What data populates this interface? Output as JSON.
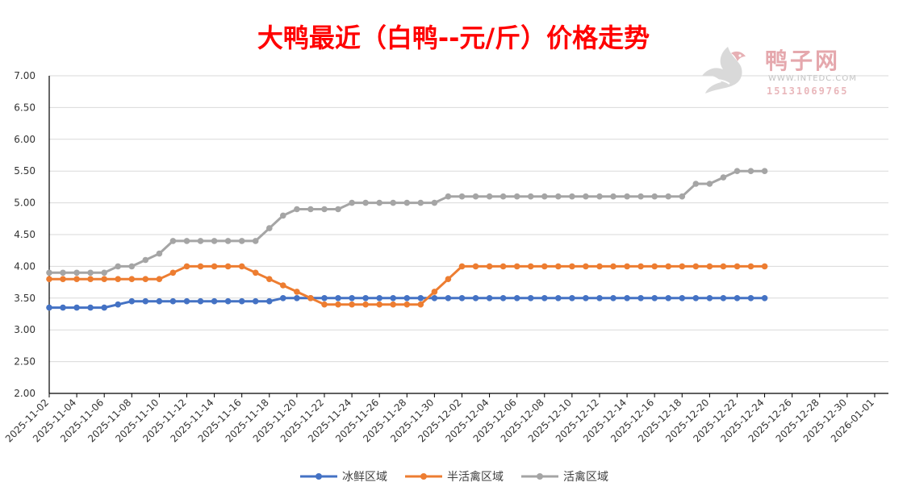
{
  "chart_data": {
    "type": "line",
    "title": "大鸭最近（白鸭--元/斤）价格走势",
    "xlabel": "",
    "ylabel": "",
    "ylim": [
      2.0,
      7.0
    ],
    "y_ticks": [
      "2.00",
      "2.50",
      "3.00",
      "3.50",
      "4.00",
      "4.50",
      "5.00",
      "5.50",
      "6.00",
      "6.50",
      "7.00"
    ],
    "x_range": [
      "2025-11-02",
      "2026-01-02"
    ],
    "x_tick_labels": [
      "2025-11-02",
      "2025-11-04",
      "2025-11-06",
      "2025-11-08",
      "2025-11-10",
      "2025-11-12",
      "2025-11-14",
      "2025-11-16",
      "2025-11-18",
      "2025-11-20",
      "2025-11-22",
      "2025-11-24",
      "2025-11-26",
      "2025-11-28",
      "2025-11-30",
      "2025-12-02",
      "2025-12-04",
      "2025-12-06",
      "2025-12-08",
      "2025-12-10",
      "2025-12-12",
      "2025-12-14",
      "2025-12-16",
      "2025-12-18",
      "2025-12-20",
      "2025-12-22",
      "2025-12-24",
      "2025-12-26",
      "2025-12-28",
      "2025-12-30",
      "2026-01-01"
    ],
    "grid": true,
    "legend_position": "bottom",
    "x": [
      "2025-11-02",
      "2025-11-03",
      "2025-11-04",
      "2025-11-05",
      "2025-11-06",
      "2025-11-07",
      "2025-11-08",
      "2025-11-09",
      "2025-11-10",
      "2025-11-11",
      "2025-11-12",
      "2025-11-13",
      "2025-11-14",
      "2025-11-15",
      "2025-11-16",
      "2025-11-17",
      "2025-11-18",
      "2025-11-19",
      "2025-11-20",
      "2025-11-21",
      "2025-11-22",
      "2025-11-23",
      "2025-11-24",
      "2025-11-25",
      "2025-11-26",
      "2025-11-27",
      "2025-11-28",
      "2025-11-29",
      "2025-11-30",
      "2025-12-01",
      "2025-12-02",
      "2025-12-03",
      "2025-12-04",
      "2025-12-05",
      "2025-12-06",
      "2025-12-07",
      "2025-12-08",
      "2025-12-09",
      "2025-12-10",
      "2025-12-11",
      "2025-12-12",
      "2025-12-13",
      "2025-12-14",
      "2025-12-15",
      "2025-12-16",
      "2025-12-17",
      "2025-12-18",
      "2025-12-19",
      "2025-12-20",
      "2025-12-21",
      "2025-12-22",
      "2025-12-23",
      "2025-12-24"
    ],
    "series": [
      {
        "name": "冰鲜区域",
        "color": "#4472c4",
        "values": [
          3.35,
          3.35,
          3.35,
          3.35,
          3.35,
          3.4,
          3.45,
          3.45,
          3.45,
          3.45,
          3.45,
          3.45,
          3.45,
          3.45,
          3.45,
          3.45,
          3.45,
          3.5,
          3.5,
          3.5,
          3.5,
          3.5,
          3.5,
          3.5,
          3.5,
          3.5,
          3.5,
          3.5,
          3.5,
          3.5,
          3.5,
          3.5,
          3.5,
          3.5,
          3.5,
          3.5,
          3.5,
          3.5,
          3.5,
          3.5,
          3.5,
          3.5,
          3.5,
          3.5,
          3.5,
          3.5,
          3.5,
          3.5,
          3.5,
          3.5,
          3.5,
          3.5,
          3.5
        ]
      },
      {
        "name": "半活禽区域",
        "color": "#ed7d31",
        "values": [
          3.8,
          3.8,
          3.8,
          3.8,
          3.8,
          3.8,
          3.8,
          3.8,
          3.8,
          3.9,
          4.0,
          4.0,
          4.0,
          4.0,
          4.0,
          3.9,
          3.8,
          3.7,
          3.6,
          3.5,
          3.4,
          3.4,
          3.4,
          3.4,
          3.4,
          3.4,
          3.4,
          3.4,
          3.6,
          3.8,
          4.0,
          4.0,
          4.0,
          4.0,
          4.0,
          4.0,
          4.0,
          4.0,
          4.0,
          4.0,
          4.0,
          4.0,
          4.0,
          4.0,
          4.0,
          4.0,
          4.0,
          4.0,
          4.0,
          4.0,
          4.0,
          4.0,
          4.0
        ]
      },
      {
        "name": "活禽区域",
        "color": "#a5a5a5",
        "values": [
          3.9,
          3.9,
          3.9,
          3.9,
          3.9,
          4.0,
          4.0,
          4.1,
          4.2,
          4.4,
          4.4,
          4.4,
          4.4,
          4.4,
          4.4,
          4.4,
          4.6,
          4.8,
          4.9,
          4.9,
          4.9,
          4.9,
          5.0,
          5.0,
          5.0,
          5.0,
          5.0,
          5.0,
          5.0,
          5.1,
          5.1,
          5.1,
          5.1,
          5.1,
          5.1,
          5.1,
          5.1,
          5.1,
          5.1,
          5.1,
          5.1,
          5.1,
          5.1,
          5.1,
          5.1,
          5.1,
          5.1,
          5.3,
          5.3,
          5.4,
          5.5,
          5.5,
          5.5
        ]
      }
    ]
  },
  "watermark": {
    "name": "鸭子网",
    "url": "WWW.INTEDC.COM",
    "phone": "15131069765"
  }
}
